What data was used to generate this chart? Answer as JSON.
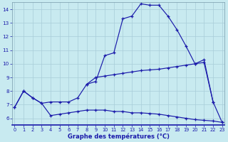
{
  "xlabel": "Graphe des températures (°C)",
  "background_color": "#c8eaf0",
  "grid_color": "#a8ccd8",
  "line_color": "#1a1aaa",
  "hours": [
    0,
    1,
    2,
    3,
    4,
    5,
    6,
    7,
    8,
    9,
    10,
    11,
    12,
    13,
    14,
    15,
    16,
    17,
    18,
    19,
    20,
    21,
    22,
    23
  ],
  "curve1": [
    6.8,
    8.0,
    7.5,
    7.1,
    6.2,
    6.3,
    6.4,
    6.5,
    6.6,
    6.6,
    6.6,
    6.5,
    6.5,
    6.4,
    6.4,
    6.35,
    6.3,
    6.2,
    6.1,
    6.0,
    5.9,
    5.85,
    5.8,
    5.7
  ],
  "curve2": [
    6.8,
    8.0,
    7.5,
    7.1,
    7.2,
    7.2,
    7.2,
    7.5,
    8.5,
    9.0,
    9.1,
    9.2,
    9.3,
    9.4,
    9.5,
    9.55,
    9.6,
    9.7,
    9.8,
    9.9,
    10.0,
    10.1,
    7.2,
    5.7
  ],
  "curve3_x": [
    8,
    9,
    10,
    11,
    12,
    13,
    14,
    15,
    16,
    17,
    18,
    19,
    20,
    21,
    22
  ],
  "curve3_y": [
    8.5,
    8.7,
    10.6,
    10.8,
    13.3,
    13.5,
    14.4,
    14.3,
    14.3,
    13.5,
    12.5,
    11.3,
    10.0,
    10.3,
    7.2
  ],
  "ylim": [
    5.5,
    14.5
  ],
  "yticks": [
    6,
    7,
    8,
    9,
    10,
    11,
    12,
    13,
    14
  ],
  "xlim": [
    -0.3,
    23.3
  ]
}
